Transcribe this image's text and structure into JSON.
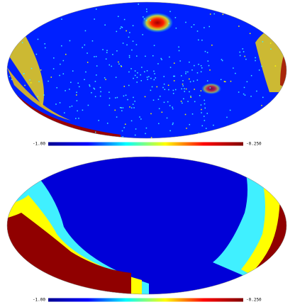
{
  "chart_data": [
    {
      "type": "mollweide",
      "colormap": "jet",
      "clim": [
        -1,
        -0.25
      ],
      "cticks": [
        {
          "value": -1,
          "label": "-1.00"
        },
        {
          "value": -0.25,
          "label": "-0.250"
        }
      ]
    },
    {
      "type": "mollweide",
      "colormap": "jet",
      "clim": [
        -1,
        -0.25
      ],
      "cticks": [
        {
          "value": -1,
          "label": "-1.00"
        },
        {
          "value": -0.25,
          "label": "-0.250"
        }
      ]
    }
  ]
}
